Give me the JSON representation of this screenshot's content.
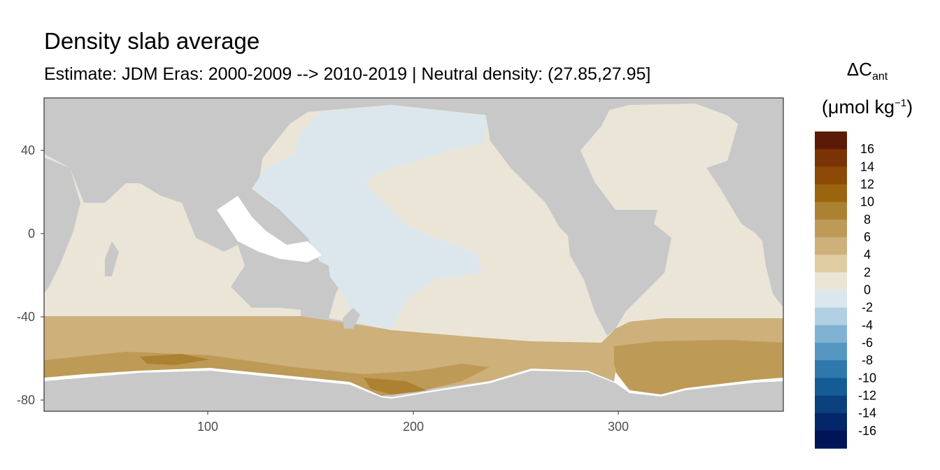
{
  "title": "Density slab average",
  "subtitle": "Estimate: JDM Eras: 2000-2009 --> 2010-2019 | Neutral density: (27.85,27.95]",
  "legend": {
    "title_main": "ΔC",
    "title_sub": "ant",
    "units_prefix": "(μmol kg",
    "units_sup": "−1",
    "units_suffix": ")",
    "breaks": [
      "16",
      "14",
      "12",
      "10",
      "8",
      "6",
      "4",
      "2",
      "0",
      "-2",
      "-4",
      "-6",
      "-8",
      "-10",
      "-12",
      "-14",
      "-16"
    ],
    "colors": [
      "#5b1a06",
      "#7a3305",
      "#8c4a06",
      "#9b650f",
      "#ad8132",
      "#bd9a55",
      "#cdb07a",
      "#dfcca3",
      "#ebe5d8",
      "#dce7ed",
      "#b1d0e3",
      "#80b3d3",
      "#5597c2",
      "#2f78ad",
      "#155c97",
      "#0a407d",
      "#05266a",
      "#021458"
    ]
  },
  "axes": {
    "x_ticks": [
      "100",
      "200",
      "300"
    ],
    "y_ticks": [
      "40",
      "0",
      "-40",
      "-80"
    ]
  },
  "map": {
    "land_color": "#c8c8c8",
    "missing_color": "#ffffff",
    "panel_border": "#333333"
  }
}
